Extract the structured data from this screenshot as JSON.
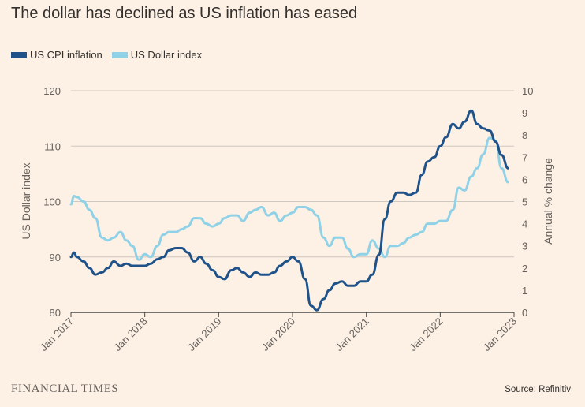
{
  "title": "The dollar has declined as US inflation has eased",
  "brand": "FINANCIAL TIMES",
  "source": "Source: Refinitiv",
  "colors": {
    "background": "#fdf1e5",
    "cpi": "#1f5289",
    "dollar": "#8fd1e6",
    "grid": "#cfc8c0",
    "axis": "#4a4845"
  },
  "chart_data": {
    "type": "line",
    "grid": true,
    "legend_position": "top-left",
    "left_axis": {
      "label": "US Dollar index",
      "range": [
        80,
        120
      ],
      "ticks": [
        80,
        90,
        100,
        110,
        120
      ]
    },
    "right_axis": {
      "label": "Annual % change",
      "range": [
        0,
        10
      ],
      "ticks": [
        0,
        1,
        2,
        3,
        4,
        5,
        6,
        7,
        8,
        9,
        10
      ]
    },
    "x_ticks": [
      "Jan 2017",
      "Jan 2018",
      "Jan 2019",
      "Jan 2020",
      "Jan 2021",
      "Jan 2022",
      "Jan 2023"
    ],
    "series": [
      {
        "name": "US CPI inflation",
        "axis": "right",
        "color": "#1f5289",
        "points": [
          [
            2017.0,
            2.5
          ],
          [
            2017.04,
            2.7
          ],
          [
            2017.08,
            2.5
          ],
          [
            2017.17,
            2.3
          ],
          [
            2017.25,
            2.0
          ],
          [
            2017.33,
            1.7
          ],
          [
            2017.42,
            1.8
          ],
          [
            2017.5,
            2.0
          ],
          [
            2017.58,
            2.3
          ],
          [
            2017.67,
            2.1
          ],
          [
            2017.75,
            2.2
          ],
          [
            2017.83,
            2.1
          ],
          [
            2017.92,
            2.1
          ],
          [
            2018.0,
            2.1
          ],
          [
            2018.08,
            2.2
          ],
          [
            2018.17,
            2.4
          ],
          [
            2018.25,
            2.5
          ],
          [
            2018.33,
            2.8
          ],
          [
            2018.42,
            2.9
          ],
          [
            2018.5,
            2.9
          ],
          [
            2018.58,
            2.7
          ],
          [
            2018.67,
            2.3
          ],
          [
            2018.75,
            2.5
          ],
          [
            2018.83,
            2.2
          ],
          [
            2018.92,
            1.9
          ],
          [
            2019.0,
            1.6
          ],
          [
            2019.08,
            1.5
          ],
          [
            2019.17,
            1.9
          ],
          [
            2019.25,
            2.0
          ],
          [
            2019.33,
            1.8
          ],
          [
            2019.42,
            1.6
          ],
          [
            2019.5,
            1.8
          ],
          [
            2019.58,
            1.7
          ],
          [
            2019.67,
            1.7
          ],
          [
            2019.75,
            1.8
          ],
          [
            2019.83,
            2.1
          ],
          [
            2019.92,
            2.3
          ],
          [
            2020.0,
            2.5
          ],
          [
            2020.08,
            2.3
          ],
          [
            2020.17,
            1.5
          ],
          [
            2020.25,
            0.3
          ],
          [
            2020.33,
            0.1
          ],
          [
            2020.42,
            0.6
          ],
          [
            2020.5,
            1.0
          ],
          [
            2020.58,
            1.3
          ],
          [
            2020.67,
            1.4
          ],
          [
            2020.75,
            1.2
          ],
          [
            2020.83,
            1.2
          ],
          [
            2020.92,
            1.4
          ],
          [
            2021.0,
            1.4
          ],
          [
            2021.08,
            1.7
          ],
          [
            2021.17,
            2.6
          ],
          [
            2021.25,
            4.2
          ],
          [
            2021.33,
            5.0
          ],
          [
            2021.42,
            5.4
          ],
          [
            2021.5,
            5.4
          ],
          [
            2021.58,
            5.3
          ],
          [
            2021.67,
            5.4
          ],
          [
            2021.75,
            6.2
          ],
          [
            2021.83,
            6.8
          ],
          [
            2021.92,
            7.0
          ],
          [
            2022.0,
            7.5
          ],
          [
            2022.08,
            7.9
          ],
          [
            2022.17,
            8.5
          ],
          [
            2022.25,
            8.3
          ],
          [
            2022.33,
            8.6
          ],
          [
            2022.42,
            9.1
          ],
          [
            2022.5,
            8.5
          ],
          [
            2022.58,
            8.3
          ],
          [
            2022.67,
            8.2
          ],
          [
            2022.75,
            7.7
          ],
          [
            2022.83,
            7.1
          ],
          [
            2022.92,
            6.5
          ]
        ]
      },
      {
        "name": "US Dollar index",
        "axis": "left",
        "color": "#8fd1e6",
        "points": [
          [
            2017.0,
            99.5
          ],
          [
            2017.04,
            101.0
          ],
          [
            2017.08,
            100.8
          ],
          [
            2017.17,
            100.0
          ],
          [
            2017.25,
            98.5
          ],
          [
            2017.33,
            97.0
          ],
          [
            2017.42,
            93.5
          ],
          [
            2017.5,
            93.0
          ],
          [
            2017.58,
            93.5
          ],
          [
            2017.67,
            94.5
          ],
          [
            2017.75,
            93.0
          ],
          [
            2017.83,
            92.0
          ],
          [
            2017.92,
            89.5
          ],
          [
            2018.0,
            90.5
          ],
          [
            2018.08,
            90.0
          ],
          [
            2018.17,
            92.0
          ],
          [
            2018.25,
            94.0
          ],
          [
            2018.33,
            94.5
          ],
          [
            2018.42,
            94.5
          ],
          [
            2018.5,
            95.0
          ],
          [
            2018.58,
            95.5
          ],
          [
            2018.67,
            97.0
          ],
          [
            2018.75,
            97.0
          ],
          [
            2018.83,
            96.0
          ],
          [
            2018.92,
            95.5
          ],
          [
            2019.0,
            96.0
          ],
          [
            2019.08,
            97.0
          ],
          [
            2019.17,
            97.5
          ],
          [
            2019.25,
            97.5
          ],
          [
            2019.33,
            96.5
          ],
          [
            2019.42,
            98.0
          ],
          [
            2019.5,
            98.5
          ],
          [
            2019.58,
            99.0
          ],
          [
            2019.67,
            97.5
          ],
          [
            2019.75,
            98.0
          ],
          [
            2019.83,
            96.5
          ],
          [
            2019.92,
            97.5
          ],
          [
            2020.0,
            98.0
          ],
          [
            2020.08,
            99.0
          ],
          [
            2020.17,
            99.0
          ],
          [
            2020.25,
            98.5
          ],
          [
            2020.33,
            97.5
          ],
          [
            2020.42,
            93.5
          ],
          [
            2020.5,
            92.0
          ],
          [
            2020.58,
            93.5
          ],
          [
            2020.67,
            93.5
          ],
          [
            2020.75,
            91.5
          ],
          [
            2020.83,
            90.0
          ],
          [
            2020.92,
            90.5
          ],
          [
            2021.0,
            90.5
          ],
          [
            2021.08,
            93.0
          ],
          [
            2021.17,
            91.5
          ],
          [
            2021.25,
            90.0
          ],
          [
            2021.33,
            92.0
          ],
          [
            2021.42,
            92.0
          ],
          [
            2021.5,
            92.5
          ],
          [
            2021.58,
            93.5
          ],
          [
            2021.67,
            94.0
          ],
          [
            2021.75,
            94.5
          ],
          [
            2021.83,
            96.0
          ],
          [
            2021.92,
            96.0
          ],
          [
            2022.0,
            96.5
          ],
          [
            2022.08,
            96.5
          ],
          [
            2022.17,
            98.5
          ],
          [
            2022.25,
            102.5
          ],
          [
            2022.33,
            102.0
          ],
          [
            2022.42,
            104.5
          ],
          [
            2022.5,
            106.0
          ],
          [
            2022.58,
            108.5
          ],
          [
            2022.67,
            111.5
          ],
          [
            2022.75,
            111.0
          ],
          [
            2022.83,
            106.0
          ],
          [
            2022.92,
            103.5
          ]
        ]
      }
    ]
  }
}
